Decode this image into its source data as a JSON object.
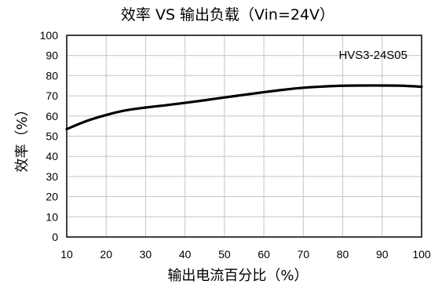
{
  "chart_data": {
    "type": "line",
    "title": "效率 VS 输出负载（Vin=24V）",
    "xlabel": "输出电流百分比（%）",
    "ylabel": "效率（%）",
    "xlim": [
      10,
      100
    ],
    "ylim": [
      0,
      100
    ],
    "xticks": [
      "10",
      "20",
      "30",
      "40",
      "50",
      "60",
      "70",
      "80",
      "90",
      "100"
    ],
    "yticks": [
      "0",
      "10",
      "20",
      "30",
      "40",
      "50",
      "60",
      "70",
      "80",
      "90",
      "100"
    ],
    "grid": true,
    "annotation": "HVS3-24S05",
    "series": [
      {
        "x": [
          10,
          15,
          20,
          25,
          30,
          35,
          40,
          45,
          50,
          55,
          60,
          65,
          70,
          75,
          80,
          85,
          90,
          95,
          100
        ],
        "y": [
          53.5,
          57.5,
          60.5,
          62.8,
          64.2,
          65.3,
          66.5,
          67.8,
          69.2,
          70.5,
          71.8,
          73.0,
          74.0,
          74.6,
          75.0,
          75.1,
          75.1,
          75.0,
          74.5
        ]
      }
    ]
  }
}
